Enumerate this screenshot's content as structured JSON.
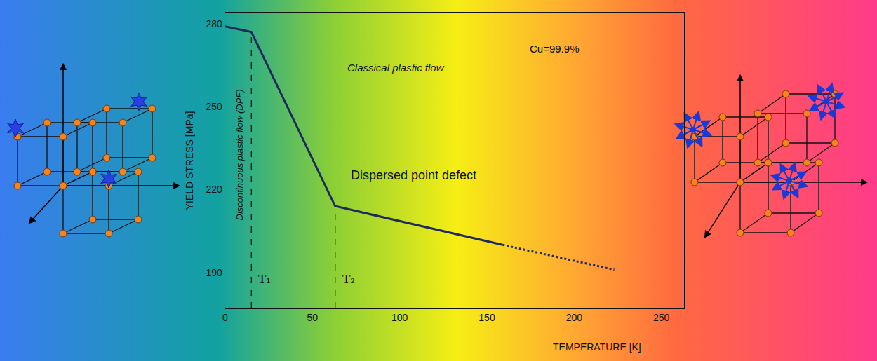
{
  "chart_data": {
    "type": "line",
    "x_label": "TEMPERATURE [K]",
    "y_label": "YIELD STRESS [MPa]",
    "xlim": [
      0,
      263
    ],
    "xticks": [
      0,
      50,
      100,
      150,
      200,
      250
    ],
    "ylim": [
      177,
      284
    ],
    "yticks": [
      190,
      220,
      250,
      280
    ],
    "grid": false,
    "series": [
      {
        "x": [
          0,
          15,
          63,
          159
        ],
        "values": [
          279,
          277,
          214,
          200
        ],
        "color": "#1f2a5c",
        "line_style": "solid"
      },
      {
        "x": [
          159,
          223
        ],
        "values": [
          200,
          191
        ],
        "color": "#1f2a5c",
        "line_style": "dotted"
      }
    ],
    "markers": [
      {
        "label": "T₁",
        "x": 15,
        "y": 277
      },
      {
        "label": "T₂",
        "x": 63,
        "y": 214
      }
    ],
    "annotations": [
      "Cu=99.9%",
      "Classical plastic flow",
      "Discontinuous plastic flow (DPF)",
      "Dispersed point defect"
    ]
  }
}
